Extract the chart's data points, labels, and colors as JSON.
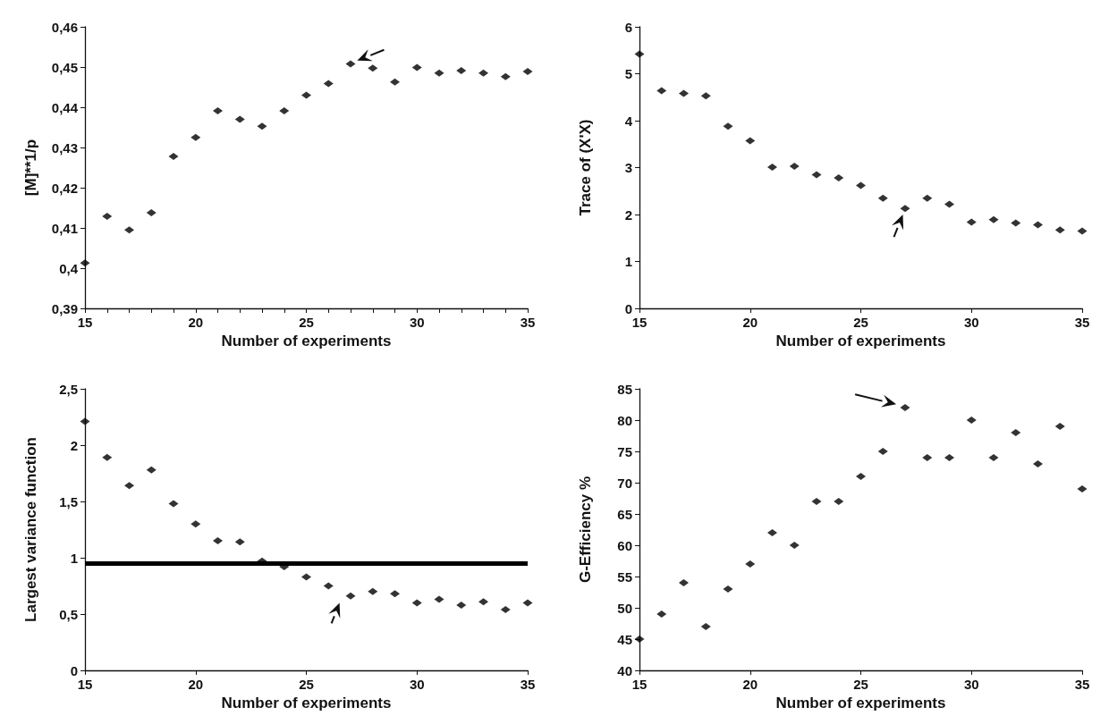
{
  "chart_data": [
    {
      "type": "scatter",
      "xlabel": "Number of experiments",
      "ylabel": "[M]**1/p",
      "marker": "diamond",
      "color": "#000000",
      "x": [
        15,
        16,
        17,
        18,
        19,
        20,
        21,
        22,
        23,
        24,
        25,
        26,
        27,
        28,
        29,
        30,
        31,
        32,
        33,
        34,
        35
      ],
      "values": [
        0.4013,
        0.4129,
        0.4095,
        0.4138,
        0.4278,
        0.4325,
        0.4391,
        0.437,
        0.4353,
        0.4391,
        0.443,
        0.4459,
        0.4508,
        0.4497,
        0.4463,
        0.4499,
        0.4485,
        0.4491,
        0.4485,
        0.4476,
        0.4489
      ],
      "xlim": [
        15,
        35
      ],
      "xticks": [
        15,
        {
          "value": 16,
          "label": null
        },
        {
          "value": 17,
          "label": null
        },
        {
          "value": 18,
          "label": null
        },
        {
          "value": 19,
          "label": null
        },
        20,
        {
          "value": 21,
          "label": null
        },
        {
          "value": 22,
          "label": null
        },
        {
          "value": 23,
          "label": null
        },
        {
          "value": 24,
          "label": null
        },
        25,
        {
          "value": 26,
          "label": null
        },
        {
          "value": 27,
          "label": null
        },
        {
          "value": 28,
          "label": null
        },
        {
          "value": 29,
          "label": null
        },
        30,
        {
          "value": 31,
          "label": null
        },
        {
          "value": 32,
          "label": null
        },
        {
          "value": 33,
          "label": null
        },
        {
          "value": 34,
          "label": null
        },
        35
      ],
      "ylim": [
        0.39,
        0.46
      ],
      "yticks": [
        {
          "value": 0.39,
          "label": "0,39"
        },
        {
          "value": 0.4,
          "label": "0,4"
        },
        {
          "value": 0.41,
          "label": "0,41"
        },
        {
          "value": 0.42,
          "label": "0,42"
        },
        {
          "value": 0.43,
          "label": "0,43"
        },
        {
          "value": 0.44,
          "label": "0,44"
        },
        {
          "value": 0.45,
          "label": "0,45"
        },
        {
          "value": 0.46,
          "label": "0,46"
        }
      ]
    },
    {
      "type": "scatter",
      "xlabel": "Number of experiments",
      "ylabel": "Trace of (X'X)",
      "marker": "diamond",
      "color": "#000000",
      "x": [
        15,
        16,
        17,
        18,
        19,
        20,
        21,
        22,
        23,
        24,
        25,
        26,
        27,
        28,
        29,
        30,
        31,
        32,
        33,
        34,
        35
      ],
      "values": [
        5.42,
        4.64,
        4.58,
        4.53,
        3.88,
        3.57,
        3.01,
        3.03,
        2.85,
        2.78,
        2.62,
        2.35,
        2.13,
        2.35,
        2.22,
        1.84,
        1.89,
        1.82,
        1.78,
        1.67,
        1.65
      ],
      "xlim": [
        15,
        35
      ],
      "xticks": [
        15,
        20,
        25,
        30,
        35
      ],
      "ylim": [
        0,
        6
      ],
      "yticks": [
        0,
        1,
        2,
        3,
        4,
        5,
        6
      ]
    },
    {
      "type": "scatter",
      "xlabel": "Number of experiments",
      "ylabel": "Largest variance function",
      "marker": "diamond",
      "color": "#000000",
      "x": [
        15,
        16,
        17,
        18,
        19,
        20,
        21,
        22,
        23,
        24,
        25,
        26,
        27,
        28,
        29,
        30,
        31,
        32,
        33,
        34,
        35
      ],
      "values": [
        2.21,
        1.89,
        1.64,
        1.78,
        1.48,
        1.3,
        1.15,
        1.14,
        0.97,
        0.92,
        0.83,
        0.75,
        0.66,
        0.7,
        0.68,
        0.6,
        0.63,
        0.58,
        0.61,
        0.54,
        0.6
      ],
      "xlim": [
        15,
        35
      ],
      "xticks": [
        15,
        20,
        25,
        30,
        35
      ],
      "ylim": [
        0,
        2.5
      ],
      "yticks": [
        0,
        {
          "value": 0.5,
          "label": "0,5"
        },
        1,
        {
          "value": 1.5,
          "label": "1,5"
        },
        2,
        {
          "value": 2.5,
          "label": "2,5"
        }
      ],
      "ref_lines": [
        {
          "axis": "y",
          "value": 0.95,
          "color": "#000000",
          "line_style": "solid"
        }
      ]
    },
    {
      "type": "scatter",
      "xlabel": "Number of experiments",
      "ylabel": "G-Efficiency %",
      "marker": "diamond",
      "color": "#000000",
      "x": [
        15,
        16,
        17,
        18,
        19,
        20,
        21,
        22,
        23,
        24,
        25,
        26,
        27,
        28,
        29,
        30,
        31,
        32,
        33,
        34,
        35
      ],
      "values": [
        45,
        49,
        54,
        47,
        53,
        57,
        62,
        60,
        67,
        67,
        71,
        75,
        82,
        74,
        74,
        80,
        74,
        78,
        73,
        79,
        69
      ],
      "xlim": [
        15,
        35
      ],
      "xticks": [
        15,
        20,
        25,
        30,
        35
      ],
      "ylim": [
        40,
        85
      ],
      "yticks": [
        40,
        45,
        50,
        55,
        60,
        65,
        70,
        75,
        80,
        85
      ]
    }
  ]
}
